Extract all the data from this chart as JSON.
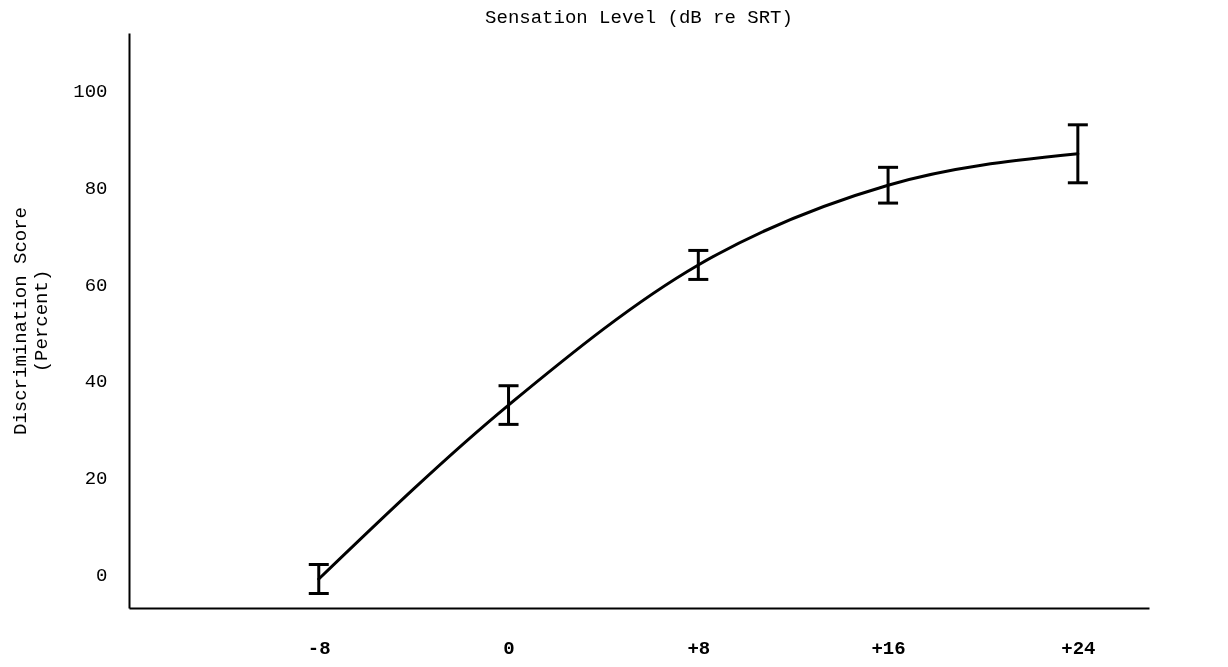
{
  "chart_data": {
    "type": "line",
    "xlabel": "Sensation Level (dB re SRT)",
    "ylabel": "Discrimination Score\n(Percent)",
    "x": [
      -8,
      0,
      8,
      16,
      24
    ],
    "series": [
      {
        "color": "#000000",
        "values": [
          -1,
          35,
          64,
          80.5,
          87
        ],
        "errors": [
          3,
          4,
          3,
          3.7,
          6
        ]
      }
    ],
    "xlim": [
      -16,
      27
    ],
    "xticks": [
      -8,
      0,
      {
        "value": 8,
        "label": "+8"
      },
      {
        "value": 16,
        "label": "+16"
      },
      {
        "value": 24,
        "label": "+24"
      }
    ],
    "ylim": [
      -7,
      112
    ],
    "yticks": [
      0,
      20,
      40,
      60,
      80,
      100
    ],
    "grid": false,
    "marker": "none",
    "line_style": "solid"
  }
}
